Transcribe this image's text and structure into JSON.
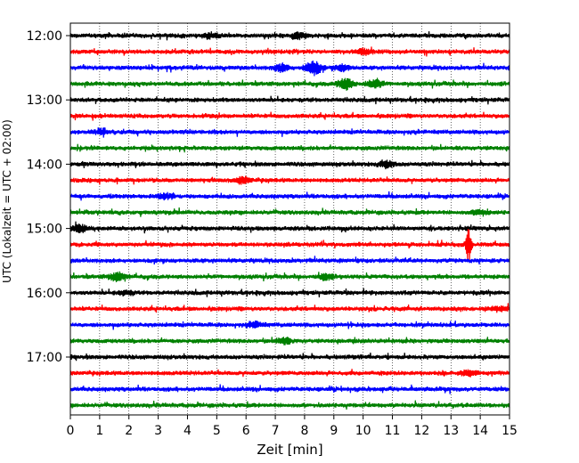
{
  "chart_data": {
    "type": "line",
    "title": "",
    "xlabel": "Zeit  [min]",
    "ylabel": "UTC (Lokalzeit = UTC + 02:00)",
    "xlim": [
      0,
      15
    ],
    "x_ticks": [
      "0",
      "1",
      "2",
      "3",
      "4",
      "5",
      "6",
      "7",
      "8",
      "9",
      "10",
      "11",
      "12",
      "13",
      "14",
      "15"
    ],
    "y_ticks": [
      "12:00",
      "13:00",
      "14:00",
      "15:00",
      "16:00",
      "17:00"
    ],
    "grid": "vertical dotted lines at each minute",
    "row_interval_minutes": 15,
    "rows": [
      {
        "start": "12:00",
        "color": "#000000",
        "events": [
          {
            "t": 4.8,
            "amp": 0.25
          },
          {
            "t": 7.8,
            "amp": 0.3
          }
        ]
      },
      {
        "start": "12:15",
        "color": "#ff0000",
        "events": [
          {
            "t": 10.0,
            "amp": 0.25
          }
        ]
      },
      {
        "start": "12:30",
        "color": "#0000ff",
        "events": [
          {
            "t": 7.2,
            "amp": 0.35
          },
          {
            "t": 8.3,
            "amp": 0.75
          },
          {
            "t": 9.3,
            "amp": 0.3
          }
        ]
      },
      {
        "start": "12:45",
        "color": "#008000",
        "events": [
          {
            "t": 9.4,
            "amp": 0.55
          },
          {
            "t": 10.4,
            "amp": 0.45
          }
        ]
      },
      {
        "start": "13:00",
        "color": "#000000",
        "events": []
      },
      {
        "start": "13:15",
        "color": "#ff0000",
        "events": []
      },
      {
        "start": "13:30",
        "color": "#0000ff",
        "events": [
          {
            "t": 1.1,
            "amp": 0.25
          }
        ]
      },
      {
        "start": "13:45",
        "color": "#008000",
        "events": []
      },
      {
        "start": "14:00",
        "color": "#000000",
        "events": [
          {
            "t": 10.8,
            "amp": 0.35
          }
        ]
      },
      {
        "start": "14:15",
        "color": "#ff0000",
        "events": [
          {
            "t": 5.9,
            "amp": 0.3
          }
        ]
      },
      {
        "start": "14:30",
        "color": "#0000ff",
        "events": [
          {
            "t": 3.2,
            "amp": 0.25
          }
        ]
      },
      {
        "start": "14:45",
        "color": "#008000",
        "events": [
          {
            "t": 14.0,
            "amp": 0.25
          }
        ]
      },
      {
        "start": "15:00",
        "color": "#000000",
        "events": [
          {
            "t": 0.3,
            "amp": 0.4
          }
        ]
      },
      {
        "start": "15:15",
        "color": "#ff0000",
        "events": [
          {
            "t": 13.6,
            "amp": 1.8
          }
        ]
      },
      {
        "start": "15:30",
        "color": "#0000ff",
        "events": []
      },
      {
        "start": "15:45",
        "color": "#008000",
        "events": [
          {
            "t": 1.6,
            "amp": 0.45
          },
          {
            "t": 8.7,
            "amp": 0.3
          }
        ]
      },
      {
        "start": "16:00",
        "color": "#000000",
        "events": [
          {
            "t": 1.9,
            "amp": 0.2
          }
        ]
      },
      {
        "start": "16:15",
        "color": "#ff0000",
        "events": [
          {
            "t": 14.7,
            "amp": 0.25
          }
        ]
      },
      {
        "start": "16:30",
        "color": "#0000ff",
        "events": [
          {
            "t": 6.3,
            "amp": 0.25
          }
        ]
      },
      {
        "start": "16:45",
        "color": "#008000",
        "events": [
          {
            "t": 7.3,
            "amp": 0.3
          }
        ]
      },
      {
        "start": "17:00",
        "color": "#000000",
        "events": []
      },
      {
        "start": "17:15",
        "color": "#ff0000",
        "events": [
          {
            "t": 13.6,
            "amp": 0.3
          }
        ]
      },
      {
        "start": "17:30",
        "color": "#0000ff",
        "events": []
      },
      {
        "start": "17:45",
        "color": "#008000",
        "events": []
      }
    ]
  }
}
